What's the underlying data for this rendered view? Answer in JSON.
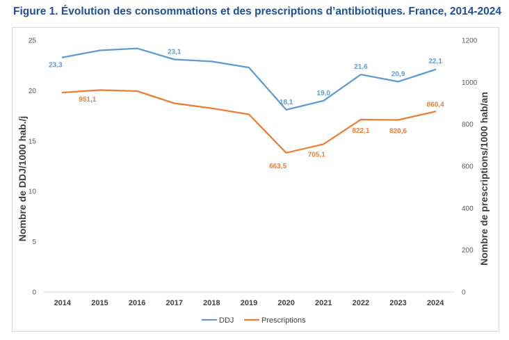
{
  "title": "Figure 1. Évolution des consommations et des prescriptions d’antibiotiques. France, 2014-2024",
  "chart_data": {
    "type": "line",
    "categories": [
      "2014",
      "2015",
      "2016",
      "2017",
      "2018",
      "2019",
      "2020",
      "2021",
      "2022",
      "2023",
      "2024"
    ],
    "series": [
      {
        "name": "DDJ",
        "axis": "left",
        "color": "#5b9bd5",
        "values": [
          23.3,
          24.0,
          24.2,
          23.1,
          22.9,
          22.3,
          18.1,
          19.0,
          21.6,
          20.9,
          22.1
        ],
        "labels": [
          "23,3",
          "",
          "",
          "23,1",
          "",
          "",
          "18,1",
          "19,0",
          "21,6",
          "20,9",
          "22,1"
        ]
      },
      {
        "name": "Prescriptions",
        "axis": "right",
        "color": "#ed7d31",
        "values": [
          951.1,
          963,
          958,
          900,
          876,
          847,
          663.5,
          705.1,
          822.1,
          820.6,
          860.4
        ],
        "labels": [
          "951,1",
          "",
          "",
          "",
          "",
          "",
          "663,5",
          "705,1",
          "822,1",
          "820,6",
          "860,4"
        ]
      }
    ],
    "y_left": {
      "label": "Nombre de DDJ/1000 hab./j",
      "ylim": [
        0,
        25
      ],
      "ticks": [
        "0",
        "5",
        "10",
        "15",
        "20",
        "25"
      ]
    },
    "y_right": {
      "label": "Nombre de prescriptions/1000 hab/an",
      "ylim": [
        0,
        1200
      ],
      "ticks": [
        "0",
        "200",
        "400",
        "600",
        "800",
        "1000",
        "1200"
      ]
    },
    "grid": false,
    "legend": "bottom-center"
  }
}
